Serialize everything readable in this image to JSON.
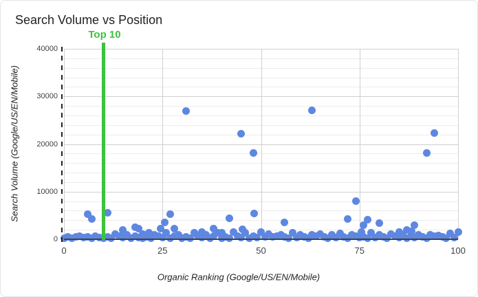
{
  "header": {
    "title": "Search Volume vs Position"
  },
  "chart_data": {
    "type": "scatter",
    "title": "Search Volume vs Position",
    "xlabel": "Organic Ranking (Google/US/EN/Mobile)",
    "ylabel": "Search Volume (Google/US/EN/Mobile)",
    "xlim": [
      0,
      100
    ],
    "ylim": [
      0,
      40000
    ],
    "x_ticks": [
      0,
      25,
      50,
      75,
      100
    ],
    "y_ticks": [
      0,
      10000,
      20000,
      30000,
      40000
    ],
    "y_minor_step": 2000,
    "grid": true,
    "legend_position": "none",
    "annotation": {
      "label": "Top 10",
      "x": 10
    },
    "colors": {
      "point": "#5d87e1",
      "annotation_green": "#3cc33c",
      "major_gridline": "#cfcfcf",
      "minor_gridline": "#ececec",
      "axis_line": "#424242",
      "tick_dash": "#212121",
      "tick_text": "#3c4043",
      "title_text": "#202124"
    },
    "points": [
      [
        6,
        5200
      ],
      [
        7,
        4300
      ],
      [
        11,
        5500
      ],
      [
        15,
        2000
      ],
      [
        18,
        2500
      ],
      [
        19,
        2200
      ],
      [
        20,
        1100
      ],
      [
        21.5,
        1300
      ],
      [
        24.5,
        2300
      ],
      [
        25.5,
        3500
      ],
      [
        27,
        5300
      ],
      [
        28,
        2200
      ],
      [
        31,
        27000
      ],
      [
        35,
        1500
      ],
      [
        38,
        2300
      ],
      [
        40,
        1300
      ],
      [
        42,
        4400
      ],
      [
        45,
        22200
      ],
      [
        45.3,
        2100
      ],
      [
        48,
        18100
      ],
      [
        48.2,
        5400
      ],
      [
        56,
        3600
      ],
      [
        63,
        27100
      ],
      [
        72,
        4200
      ],
      [
        74,
        8000
      ],
      [
        75.5,
        1500
      ],
      [
        76,
        2900
      ],
      [
        77,
        4100
      ],
      [
        80,
        3400
      ],
      [
        85,
        1500
      ],
      [
        87,
        2000
      ],
      [
        88.3,
        1700
      ],
      [
        89,
        3000
      ],
      [
        92,
        18100
      ],
      [
        94,
        22300
      ]
    ],
    "band": [
      [
        0,
        250
      ],
      [
        1,
        550
      ],
      [
        2,
        150
      ],
      [
        3,
        450
      ],
      [
        4,
        700
      ],
      [
        5,
        300
      ],
      [
        6,
        500
      ],
      [
        7,
        200
      ],
      [
        8,
        600
      ],
      [
        9,
        350
      ],
      [
        10,
        250
      ],
      [
        11,
        550
      ],
      [
        12,
        150
      ],
      [
        13,
        1100
      ],
      [
        14,
        700
      ],
      [
        15,
        300
      ],
      [
        16,
        900
      ],
      [
        17,
        200
      ],
      [
        18,
        600
      ],
      [
        19,
        350
      ],
      [
        20,
        250
      ],
      [
        21,
        550
      ],
      [
        22,
        150
      ],
      [
        23,
        1000
      ],
      [
        24,
        700
      ],
      [
        25,
        300
      ],
      [
        26,
        1300
      ],
      [
        27,
        200
      ],
      [
        28,
        600
      ],
      [
        29,
        1000
      ],
      [
        30,
        250
      ],
      [
        31,
        550
      ],
      [
        32,
        150
      ],
      [
        33,
        1400
      ],
      [
        34,
        700
      ],
      [
        35,
        300
      ],
      [
        36,
        1000
      ],
      [
        37,
        200
      ],
      [
        38,
        600
      ],
      [
        39,
        1300
      ],
      [
        40,
        250
      ],
      [
        41,
        550
      ],
      [
        42,
        150
      ],
      [
        43,
        1500
      ],
      [
        44,
        700
      ],
      [
        45,
        300
      ],
      [
        46,
        1300
      ],
      [
        47,
        200
      ],
      [
        48,
        600
      ],
      [
        49,
        350
      ],
      [
        50,
        1500
      ],
      [
        51,
        550
      ],
      [
        52,
        1100
      ],
      [
        53,
        450
      ],
      [
        54,
        700
      ],
      [
        55,
        900
      ],
      [
        56,
        500
      ],
      [
        57,
        200
      ],
      [
        58,
        1300
      ],
      [
        59,
        350
      ],
      [
        60,
        1000
      ],
      [
        61,
        550
      ],
      [
        62,
        150
      ],
      [
        63,
        900
      ],
      [
        64,
        700
      ],
      [
        65,
        1100
      ],
      [
        66,
        500
      ],
      [
        67,
        200
      ],
      [
        68,
        1000
      ],
      [
        69,
        350
      ],
      [
        70,
        1200
      ],
      [
        71,
        550
      ],
      [
        72,
        150
      ],
      [
        73,
        1000
      ],
      [
        74,
        700
      ],
      [
        75,
        300
      ],
      [
        76,
        500
      ],
      [
        77,
        200
      ],
      [
        78,
        1400
      ],
      [
        79,
        350
      ],
      [
        80,
        900
      ],
      [
        81,
        550
      ],
      [
        82,
        150
      ],
      [
        83,
        1100
      ],
      [
        84,
        700
      ],
      [
        85,
        300
      ],
      [
        86,
        900
      ],
      [
        87,
        200
      ],
      [
        88,
        600
      ],
      [
        89,
        350
      ],
      [
        90,
        1000
      ],
      [
        91,
        550
      ],
      [
        92,
        150
      ],
      [
        93,
        900
      ],
      [
        94,
        700
      ],
      [
        95,
        800
      ],
      [
        96,
        500
      ],
      [
        97,
        200
      ],
      [
        98,
        1200
      ],
      [
        99,
        350
      ],
      [
        100,
        1500
      ]
    ]
  }
}
